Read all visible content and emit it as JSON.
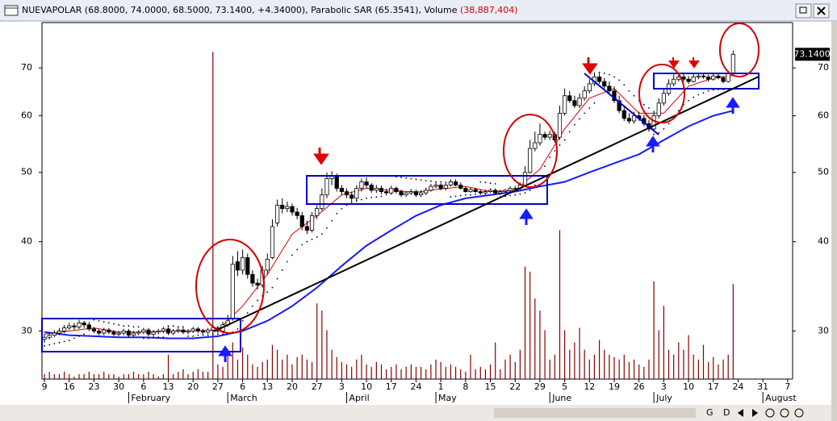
{
  "window_title": [
    "NUEVAPOLAR (68.8000, 74.0000, 68.5000, 73.1400, +4.34000), Parabolic SAR (65.3541), Volume ",
    "(38,887,404)"
  ],
  "toolbar": [
    "G",
    "D"
  ],
  "chart_data": {
    "type": "candlestick",
    "last_price_label": "73.1400",
    "log_scale": true,
    "ylim": [
      25.7,
      81
    ],
    "yticks": [
      30,
      40,
      50,
      60,
      70
    ],
    "xlim": [
      -0.5,
      151
    ],
    "xticks": [
      {
        "value": 0,
        "label": "9"
      },
      {
        "value": 5,
        "label": "16"
      },
      {
        "value": 10,
        "label": "23"
      },
      {
        "value": 15,
        "label": "30"
      },
      {
        "value": 20,
        "label": "6"
      },
      {
        "value": 25,
        "label": "13"
      },
      {
        "value": 30,
        "label": "20"
      },
      {
        "value": 35,
        "label": "27"
      },
      {
        "value": 40,
        "label": "6"
      },
      {
        "value": 45,
        "label": "13"
      },
      {
        "value": 50,
        "label": "20"
      },
      {
        "value": 55,
        "label": "27"
      },
      {
        "value": 60,
        "label": "3"
      },
      {
        "value": 65,
        "label": "10"
      },
      {
        "value": 70,
        "label": "17"
      },
      {
        "value": 75,
        "label": "24"
      },
      {
        "value": 80,
        "label": "1"
      },
      {
        "value": 85,
        "label": "8"
      },
      {
        "value": 90,
        "label": "15"
      },
      {
        "value": 95,
        "label": "22"
      },
      {
        "value": 100,
        "label": "29"
      },
      {
        "value": 105,
        "label": "5"
      },
      {
        "value": 110,
        "label": "12"
      },
      {
        "value": 115,
        "label": "19"
      },
      {
        "value": 120,
        "label": "26"
      },
      {
        "value": 125,
        "label": "3"
      },
      {
        "value": 130,
        "label": "10"
      },
      {
        "value": 135,
        "label": "17"
      },
      {
        "value": 140,
        "label": "24"
      },
      {
        "value": 145,
        "label": "31"
      },
      {
        "value": 150,
        "label": "7"
      }
    ],
    "month_ticks": [
      {
        "value": 17,
        "label": "February"
      },
      {
        "value": 37,
        "label": "March"
      },
      {
        "value": 61,
        "label": "April"
      },
      {
        "value": 79,
        "label": "May"
      },
      {
        "value": 102,
        "label": "June"
      },
      {
        "value": 123,
        "label": "July"
      },
      {
        "value": 145,
        "label": "August"
      }
    ],
    "candles": {
      "up_color": "#ffffff",
      "down_color": "#000000",
      "open": [
        29.2,
        29.4,
        29.6,
        29.8,
        30.0,
        30.3,
        30.5,
        30.4,
        30.8,
        30.6,
        30.2,
        30.0,
        29.8,
        30.1,
        29.9,
        29.7,
        29.8,
        30.0,
        29.6,
        29.8,
        29.9,
        30.1,
        29.7,
        29.9,
        30.0,
        30.2,
        29.8,
        30.0,
        30.1,
        29.9,
        30.0,
        30.2,
        30.0,
        29.9,
        30.1,
        30.3,
        30.0,
        30.6,
        31.2,
        37.5,
        36.5,
        38.0,
        36.0,
        35.0,
        34.8,
        36.5,
        38.0,
        42.5,
        45.0,
        44.5,
        44.8,
        44.0,
        43.5,
        42.0,
        41.5,
        43.5,
        44.5,
        46.5,
        49.0,
        49.5,
        47.5,
        47.0,
        46.5,
        46.0,
        47.5,
        48.5,
        48.0,
        47.2,
        47.5,
        47.0,
        46.8,
        47.5,
        47.0,
        46.5,
        46.8,
        47.0,
        46.5,
        46.8,
        47.2,
        47.8,
        48.0,
        47.5,
        48.0,
        48.5,
        48.0,
        47.5,
        47.0,
        47.3,
        47.0,
        46.8,
        47.0,
        47.2,
        46.8,
        47.0,
        47.2,
        47.5,
        47.5,
        48.0,
        50.0,
        54.0,
        55.0,
        56.5,
        56.0,
        56.5,
        56.0,
        60.5,
        64.0,
        63.0,
        62.0,
        63.5,
        65.0,
        66.5,
        68.0,
        67.0,
        66.0,
        65.0,
        63.0,
        61.0,
        59.5,
        59.0,
        60.0,
        59.5,
        58.5,
        57.5,
        60.0,
        62.5,
        64.5,
        66.5,
        67.5,
        68.0,
        67.5,
        67.0,
        68.0,
        68.2,
        68.0,
        67.5,
        68.2,
        67.8,
        67.0,
        68.8
      ],
      "high": [
        29.7,
        29.9,
        30.1,
        30.3,
        30.6,
        30.8,
        30.8,
        31.1,
        31.0,
        30.9,
        30.4,
        30.2,
        30.3,
        30.3,
        30.1,
        30.0,
        30.2,
        30.2,
        30.0,
        30.1,
        30.3,
        30.3,
        30.1,
        30.2,
        30.4,
        30.4,
        30.2,
        30.3,
        30.3,
        30.2,
        30.4,
        30.4,
        30.2,
        30.3,
        30.5,
        30.5,
        30.9,
        31.6,
        38.2,
        38.8,
        39.0,
        38.5,
        36.5,
        35.5,
        37.0,
        38.5,
        43.0,
        45.8,
        46.0,
        45.5,
        45.2,
        44.6,
        44.0,
        42.8,
        44.0,
        45.0,
        47.5,
        50.0,
        50.2,
        49.8,
        48.0,
        47.5,
        47.0,
        48.0,
        49.0,
        49.2,
        48.3,
        48.0,
        47.9,
        47.4,
        47.9,
        47.8,
        47.3,
        47.0,
        47.4,
        47.3,
        47.2,
        47.6,
        48.2,
        48.5,
        48.3,
        48.3,
        48.9,
        48.9,
        48.4,
        47.8,
        47.6,
        47.6,
        47.3,
        47.3,
        47.5,
        47.5,
        47.3,
        47.4,
        47.8,
        47.9,
        48.4,
        51.0,
        55.5,
        57.0,
        58.5,
        57.0,
        57.2,
        57.0,
        62.0,
        65.5,
        65.0,
        64.0,
        64.5,
        66.0,
        67.5,
        69.0,
        68.8,
        67.8,
        67.0,
        66.0,
        64.0,
        62.0,
        60.5,
        60.8,
        60.8,
        60.2,
        59.2,
        61.0,
        63.5,
        65.5,
        67.5,
        68.5,
        68.8,
        68.6,
        68.2,
        68.8,
        68.9,
        68.9,
        68.5,
        68.9,
        68.8,
        68.2,
        69.3,
        74.0
      ],
      "low": [
        28.9,
        29.2,
        29.4,
        29.6,
        29.8,
        30.1,
        30.1,
        30.2,
        30.3,
        30.0,
        29.8,
        29.6,
        29.6,
        29.7,
        29.5,
        29.5,
        29.6,
        29.4,
        29.4,
        29.6,
        29.7,
        29.5,
        29.5,
        29.7,
        29.8,
        29.6,
        29.6,
        29.8,
        29.7,
        29.7,
        29.8,
        29.8,
        29.7,
        29.7,
        29.9,
        29.8,
        29.8,
        30.4,
        31.0,
        35.8,
        36.0,
        35.5,
        34.6,
        34.3,
        34.5,
        36.0,
        37.8,
        42.0,
        43.8,
        44.0,
        43.5,
        43.0,
        41.5,
        41.0,
        41.2,
        43.0,
        44.2,
        46.0,
        48.0,
        47.0,
        46.5,
        46.0,
        45.5,
        45.6,
        47.0,
        47.5,
        46.8,
        46.8,
        46.6,
        46.4,
        46.5,
        46.7,
        46.2,
        46.2,
        46.5,
        46.2,
        46.2,
        46.5,
        47.0,
        47.5,
        47.2,
        47.2,
        47.8,
        47.8,
        47.3,
        46.8,
        46.8,
        46.8,
        46.5,
        46.5,
        46.8,
        46.5,
        46.5,
        46.8,
        47.0,
        47.2,
        47.2,
        47.7,
        49.8,
        53.5,
        54.5,
        55.5,
        55.5,
        55.0,
        55.5,
        60.0,
        62.5,
        61.5,
        61.5,
        63.0,
        64.5,
        66.0,
        66.5,
        65.5,
        64.5,
        62.5,
        60.5,
        59.0,
        58.5,
        58.5,
        59.0,
        58.0,
        57.0,
        57.2,
        59.5,
        62.0,
        64.0,
        66.0,
        67.0,
        67.0,
        66.5,
        66.8,
        67.5,
        67.6,
        67.0,
        67.2,
        67.5,
        66.6,
        66.8,
        68.5
      ],
      "close": [
        29.4,
        29.6,
        29.8,
        30.0,
        30.3,
        30.5,
        30.4,
        30.8,
        30.6,
        30.2,
        30.0,
        29.8,
        30.1,
        29.9,
        29.7,
        29.8,
        30.0,
        29.6,
        29.8,
        29.9,
        30.1,
        29.7,
        29.9,
        30.0,
        30.2,
        29.8,
        30.0,
        30.1,
        29.9,
        30.0,
        30.2,
        30.0,
        29.9,
        30.1,
        30.3,
        30.0,
        30.6,
        31.0,
        37.2,
        36.5,
        38.0,
        36.0,
        35.0,
        34.8,
        36.5,
        37.8,
        42.0,
        45.0,
        44.5,
        44.8,
        44.0,
        43.5,
        42.0,
        41.5,
        43.5,
        44.5,
        46.5,
        49.0,
        49.5,
        47.5,
        47.0,
        46.5,
        46.0,
        47.5,
        48.5,
        48.0,
        47.2,
        47.5,
        47.0,
        46.8,
        47.5,
        47.0,
        46.5,
        46.8,
        47.0,
        46.5,
        46.8,
        47.2,
        47.8,
        48.0,
        47.5,
        48.0,
        48.5,
        48.0,
        47.5,
        47.0,
        47.3,
        47.0,
        46.8,
        47.0,
        47.2,
        46.8,
        47.0,
        47.2,
        47.5,
        47.5,
        48.0,
        50.0,
        54.0,
        55.0,
        56.5,
        56.0,
        56.5,
        55.5,
        60.5,
        64.0,
        63.0,
        62.0,
        63.5,
        65.0,
        66.5,
        68.0,
        67.0,
        66.0,
        65.0,
        63.0,
        61.0,
        59.5,
        59.0,
        60.0,
        59.5,
        58.5,
        57.5,
        60.0,
        62.5,
        64.5,
        66.5,
        67.5,
        68.0,
        67.5,
        67.0,
        68.0,
        68.2,
        68.0,
        67.5,
        68.2,
        67.8,
        67.0,
        68.8,
        73.14
      ]
    },
    "sar": {
      "color": "#000000",
      "values": [
        28.6,
        28.7,
        28.8,
        28.9,
        29.0,
        29.1,
        29.3,
        29.5,
        29.7,
        31.2,
        31.1,
        31.0,
        30.9,
        30.8,
        30.7,
        30.6,
        30.5,
        30.5,
        30.4,
        30.4,
        29.3,
        29.3,
        29.4,
        29.4,
        29.4,
        30.5,
        30.5,
        30.4,
        30.4,
        29.5,
        29.5,
        29.6,
        29.6,
        29.6,
        29.7,
        29.7,
        29.7,
        29.8,
        29.9,
        30.2,
        31.0,
        31.8,
        32.5,
        33.1,
        33.6,
        34.0,
        34.5,
        35.5,
        36.5,
        37.5,
        38.3,
        39.0,
        39.6,
        40.0,
        40.3,
        40.6,
        41.0,
        41.8,
        42.8,
        43.8,
        44.5,
        45.0,
        45.4,
        45.6,
        45.8,
        46.0,
        46.1,
        46.2,
        46.3,
        49.5,
        49.4,
        49.3,
        49.2,
        49.1,
        49.0,
        48.9,
        48.8,
        48.7,
        48.6,
        48.5,
        48.5,
        48.4,
        46.2,
        46.3,
        46.4,
        46.5,
        46.5,
        46.6,
        48.5,
        48.4,
        48.3,
        48.2,
        46.2,
        46.3,
        46.4,
        46.5,
        46.6,
        46.8,
        47.2,
        48.0,
        49.5,
        51.0,
        52.5,
        53.6,
        54.6,
        55.5,
        57.0,
        58.3,
        59.4,
        60.5,
        61.5,
        62.5,
        69.0,
        68.8,
        68.5,
        68.0,
        67.3,
        66.3,
        65.0,
        64.0,
        63.0,
        62.2,
        61.5,
        56.5,
        56.8,
        57.5,
        58.5,
        59.8,
        61.0,
        62.2,
        63.0,
        63.7,
        64.2,
        64.6,
        65.0,
        65.2,
        65.3,
        65.3,
        65.35,
        65.3541
      ]
    },
    "lines": [
      {
        "color": "#e00000",
        "x": [
          0,
          5,
          10,
          15,
          20,
          25,
          30,
          35,
          40,
          45,
          50,
          55,
          60,
          65,
          70,
          75,
          80,
          85,
          90,
          95,
          100,
          105,
          110,
          115,
          120,
          125,
          130,
          135,
          139
        ],
        "values": [
          29.7,
          30.0,
          30.3,
          29.9,
          29.9,
          30.0,
          30.0,
          30.1,
          32.5,
          36.0,
          41.0,
          43.5,
          46.5,
          47.5,
          47.2,
          46.9,
          47.4,
          47.8,
          47.0,
          47.2,
          50.5,
          57.5,
          63.5,
          65.5,
          60.5,
          60.5,
          66.0,
          67.8,
          68.3
        ]
      },
      {
        "color": "#1a1aff",
        "x": [
          0,
          5,
          10,
          15,
          20,
          25,
          30,
          35,
          40,
          45,
          50,
          55,
          60,
          65,
          70,
          75,
          80,
          85,
          90,
          95,
          100,
          105,
          110,
          115,
          120,
          125,
          130,
          135,
          139
        ],
        "values": [
          29.9,
          29.6,
          29.5,
          29.4,
          29.4,
          29.3,
          29.3,
          29.5,
          30.0,
          31.0,
          32.5,
          34.5,
          37.0,
          39.5,
          41.5,
          43.5,
          45.0,
          46.0,
          46.5,
          47.0,
          47.8,
          48.5,
          50.0,
          51.5,
          53.0,
          55.5,
          58.0,
          60.0,
          61.0
        ]
      }
    ],
    "volume": {
      "color": "#8b0000",
      "axis": "y2",
      "values": [
        2,
        3,
        2,
        2,
        3,
        2,
        1,
        2,
        2,
        3,
        2,
        2,
        3,
        2,
        2,
        1,
        2,
        2,
        3,
        2,
        2,
        3,
        2,
        1,
        2,
        10,
        2,
        3,
        4,
        2,
        3,
        4,
        3,
        3,
        134,
        6,
        5,
        12,
        15,
        8,
        13,
        10,
        6,
        5,
        7,
        8,
        14,
        12,
        8,
        10,
        6,
        9,
        10,
        8,
        7,
        31,
        28,
        20,
        12,
        9,
        7,
        6,
        5,
        8,
        10,
        6,
        5,
        7,
        6,
        4,
        5,
        6,
        4,
        5,
        6,
        5,
        5,
        4,
        6,
        8,
        7,
        5,
        6,
        5,
        4,
        3,
        10,
        4,
        5,
        4,
        6,
        15,
        4,
        8,
        10,
        7,
        12,
        46,
        44,
        33,
        28,
        20,
        8,
        10,
        61,
        20,
        12,
        15,
        21,
        12,
        8,
        10,
        16,
        12,
        10,
        9,
        8,
        10,
        7,
        8,
        6,
        5,
        8,
        40,
        20,
        30,
        12,
        10,
        15,
        12,
        18,
        10,
        8,
        14,
        7,
        9,
        6,
        8,
        10,
        38.887404
      ]
    },
    "y2lim": [
      0,
      146
    ]
  }
}
